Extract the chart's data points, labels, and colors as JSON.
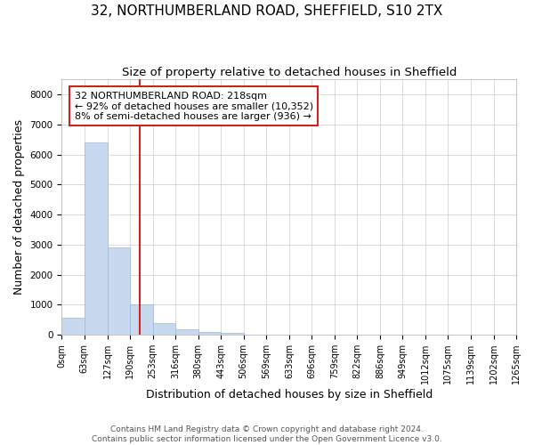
{
  "title": "32, NORTHUMBERLAND ROAD, SHEFFIELD, S10 2TX",
  "subtitle": "Size of property relative to detached houses in Sheffield",
  "xlabel": "Distribution of detached houses by size in Sheffield",
  "ylabel": "Number of detached properties",
  "footer_line1": "Contains HM Land Registry data © Crown copyright and database right 2024.",
  "footer_line2": "Contains public sector information licensed under the Open Government Licence v3.0.",
  "bin_edges": [
    0,
    63,
    127,
    190,
    253,
    316,
    380,
    443,
    506,
    569,
    633,
    696,
    759,
    822,
    886,
    949,
    1012,
    1075,
    1139,
    1202,
    1265
  ],
  "bar_heights": [
    570,
    6400,
    2920,
    1000,
    380,
    170,
    110,
    60,
    10,
    5,
    3,
    2,
    1,
    1,
    1,
    0,
    0,
    0,
    0,
    0
  ],
  "bar_color": "#c8d8ee",
  "bar_edgecolor": "#9ab8d8",
  "property_size": 218,
  "vline_color": "#cc2222",
  "annotation_text": "32 NORTHUMBERLAND ROAD: 218sqm\n← 92% of detached houses are smaller (10,352)\n8% of semi-detached houses are larger (936) →",
  "annotation_box_color": "#ffffff",
  "annotation_box_edgecolor": "#cc2222",
  "ylim": [
    0,
    8500
  ],
  "yticks": [
    0,
    1000,
    2000,
    3000,
    4000,
    5000,
    6000,
    7000,
    8000
  ],
  "grid_color": "#cccccc",
  "bg_color": "#ffffff",
  "title_fontsize": 11,
  "subtitle_fontsize": 9.5,
  "tick_label_fontsize": 7,
  "axis_label_fontsize": 9,
  "footer_fontsize": 6.5
}
